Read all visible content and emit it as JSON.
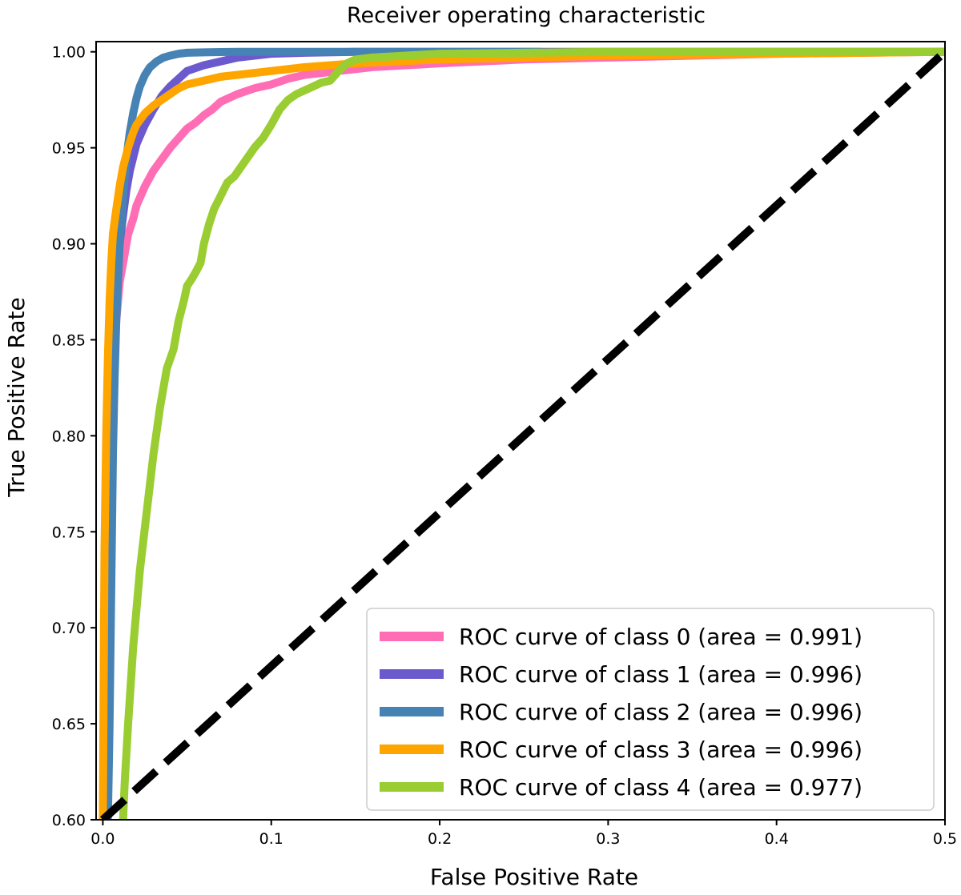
{
  "chart_data": {
    "type": "line",
    "title": "Receiver operating characteristic",
    "xlabel": "False Positive Rate",
    "ylabel": "True Positive Rate",
    "xlim": [
      -0.004,
      0.5
    ],
    "ylim": [
      0.6,
      1.0053
    ],
    "xticks": [
      0.0,
      0.1,
      0.2,
      0.3,
      0.4,
      0.5
    ],
    "xtick_labels": [
      "0.0",
      "0.1",
      "0.2",
      "0.3",
      "0.4",
      "0.5"
    ],
    "yticks": [
      0.6,
      0.65,
      0.7,
      0.75,
      0.8,
      0.85,
      0.9,
      0.95,
      1.0
    ],
    "ytick_labels": [
      "0.60",
      "0.65",
      "0.70",
      "0.75",
      "0.80",
      "0.85",
      "0.90",
      "0.95",
      "1.00"
    ],
    "grid": false,
    "legend_position": "lower-right",
    "series": [
      {
        "name": "ROC curve of class 0 (area = 0.991)",
        "color": "#ff6eb4",
        "x": [
          0.002,
          0.003,
          0.004,
          0.005,
          0.006,
          0.008,
          0.01,
          0.012,
          0.015,
          0.018,
          0.02,
          0.025,
          0.03,
          0.035,
          0.04,
          0.045,
          0.05,
          0.055,
          0.06,
          0.065,
          0.07,
          0.08,
          0.09,
          0.1,
          0.11,
          0.12,
          0.14,
          0.16,
          0.18,
          0.2,
          0.25,
          0.3,
          0.35,
          0.4,
          0.45,
          0.5
        ],
        "y": [
          0.6,
          0.7,
          0.76,
          0.8,
          0.83,
          0.86,
          0.88,
          0.89,
          0.905,
          0.913,
          0.92,
          0.93,
          0.938,
          0.944,
          0.95,
          0.955,
          0.96,
          0.963,
          0.967,
          0.97,
          0.974,
          0.978,
          0.981,
          0.983,
          0.986,
          0.988,
          0.99,
          0.992,
          0.993,
          0.994,
          0.996,
          0.997,
          0.998,
          0.999,
          0.9995,
          1.0
        ]
      },
      {
        "name": "ROC curve of class 1 (area = 0.996)",
        "color": "#6a5acd",
        "x": [
          0.001,
          0.002,
          0.003,
          0.004,
          0.005,
          0.006,
          0.008,
          0.01,
          0.012,
          0.014,
          0.016,
          0.018,
          0.02,
          0.025,
          0.03,
          0.035,
          0.04,
          0.045,
          0.05,
          0.06,
          0.07,
          0.08,
          0.09,
          0.1,
          0.12,
          0.15,
          0.2,
          0.3,
          0.5
        ],
        "y": [
          0.6,
          0.7,
          0.77,
          0.81,
          0.84,
          0.86,
          0.885,
          0.9,
          0.915,
          0.928,
          0.938,
          0.945,
          0.952,
          0.962,
          0.97,
          0.977,
          0.982,
          0.986,
          0.99,
          0.993,
          0.995,
          0.997,
          0.998,
          0.999,
          0.9995,
          1.0,
          1.0,
          1.0,
          1.0
        ]
      },
      {
        "name": "ROC curve of class 2 (area = 0.996)",
        "color": "#4682b4",
        "x": [
          0.003,
          0.004,
          0.005,
          0.006,
          0.007,
          0.008,
          0.01,
          0.012,
          0.014,
          0.016,
          0.018,
          0.02,
          0.022,
          0.025,
          0.028,
          0.032,
          0.036,
          0.04,
          0.045,
          0.05,
          0.06,
          0.07,
          0.08,
          0.1,
          0.15,
          0.26
        ],
        "y": [
          0.6,
          0.65,
          0.72,
          0.79,
          0.83,
          0.86,
          0.9,
          0.925,
          0.945,
          0.958,
          0.968,
          0.976,
          0.982,
          0.988,
          0.992,
          0.995,
          0.997,
          0.998,
          0.999,
          0.9995,
          0.9997,
          0.9999,
          1.0,
          1.0,
          1.0,
          1.0
        ]
      },
      {
        "name": "ROC curve of class 3 (area = 0.996)",
        "color": "#ffa500",
        "x": [
          0.0,
          0.001,
          0.002,
          0.003,
          0.004,
          0.005,
          0.006,
          0.008,
          0.01,
          0.012,
          0.015,
          0.018,
          0.02,
          0.025,
          0.03,
          0.035,
          0.04,
          0.045,
          0.05,
          0.06,
          0.07,
          0.08,
          0.1,
          0.12,
          0.15,
          0.2,
          0.3,
          0.4,
          0.5
        ],
        "y": [
          0.6,
          0.74,
          0.8,
          0.84,
          0.87,
          0.89,
          0.905,
          0.918,
          0.93,
          0.94,
          0.95,
          0.958,
          0.962,
          0.968,
          0.972,
          0.975,
          0.978,
          0.981,
          0.983,
          0.985,
          0.987,
          0.988,
          0.99,
          0.992,
          0.994,
          0.996,
          0.998,
          0.999,
          1.0
        ]
      },
      {
        "name": "ROC curve of class 4 (area = 0.977)",
        "color": "#9acd32",
        "x": [
          0.012,
          0.013,
          0.015,
          0.018,
          0.022,
          0.026,
          0.03,
          0.034,
          0.038,
          0.042,
          0.045,
          0.048,
          0.05,
          0.053,
          0.055,
          0.058,
          0.06,
          0.063,
          0.066,
          0.07,
          0.074,
          0.078,
          0.082,
          0.086,
          0.09,
          0.095,
          0.1,
          0.105,
          0.11,
          0.115,
          0.12,
          0.125,
          0.13,
          0.135,
          0.14,
          0.145,
          0.15,
          0.16,
          0.18,
          0.2,
          0.25,
          0.3,
          0.4,
          0.5
        ],
        "y": [
          0.6,
          0.62,
          0.65,
          0.69,
          0.73,
          0.76,
          0.79,
          0.815,
          0.835,
          0.845,
          0.86,
          0.87,
          0.878,
          0.882,
          0.885,
          0.89,
          0.9,
          0.91,
          0.918,
          0.925,
          0.932,
          0.935,
          0.94,
          0.945,
          0.95,
          0.955,
          0.962,
          0.97,
          0.975,
          0.978,
          0.98,
          0.982,
          0.984,
          0.985,
          0.99,
          0.994,
          0.996,
          0.997,
          0.998,
          0.999,
          0.9995,
          1.0,
          1.0,
          1.0
        ]
      }
    ],
    "reference_line": {
      "name": "chance-diagonal",
      "color": "#000000",
      "x": [
        0.0,
        0.5
      ],
      "y": [
        0.6,
        1.0
      ]
    }
  }
}
